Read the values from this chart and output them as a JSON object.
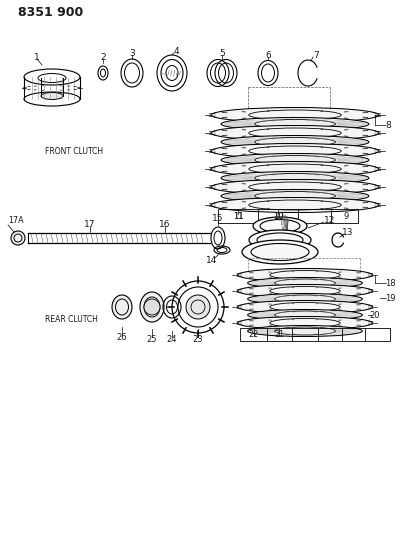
{
  "title": "8351 900",
  "bg": "#ffffff",
  "lc": "#1a1a1a",
  "front_clutch_label": "FRONT CLUTCH",
  "rear_clutch_label": "REAR CLUTCH",
  "figw": 4.1,
  "figh": 5.33,
  "dpi": 100
}
